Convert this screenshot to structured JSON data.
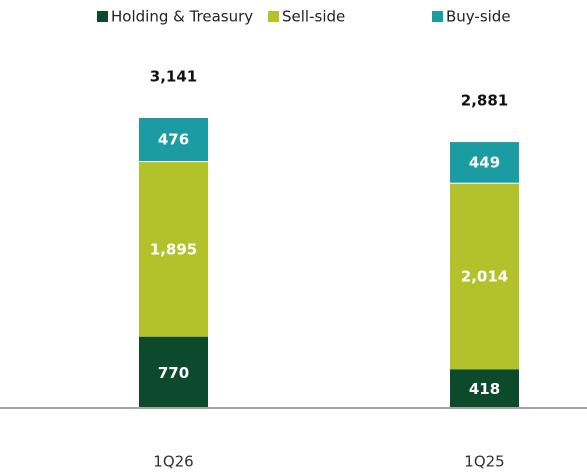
{
  "chart_data": {
    "type": "stacked_bar",
    "categories": [
      "1Q26",
      "1Q25"
    ],
    "series": [
      {
        "name": "Holding & Treasury",
        "color": "#0c4a2b",
        "values": [
          770,
          418
        ],
        "value_labels": [
          "770",
          "418"
        ]
      },
      {
        "name": "Sell-side",
        "color": "#b3c22b",
        "values": [
          1895,
          2014
        ],
        "value_labels": [
          "1,895",
          "2,014"
        ]
      },
      {
        "name": "Buy-side",
        "color": "#1b9ba2",
        "values": [
          476,
          449
        ],
        "value_labels": [
          "476",
          "449"
        ]
      }
    ],
    "totals": {
      "values": [
        3141,
        2881
      ],
      "value_labels": [
        "3,141",
        "2,881"
      ]
    },
    "legend": "top"
  }
}
